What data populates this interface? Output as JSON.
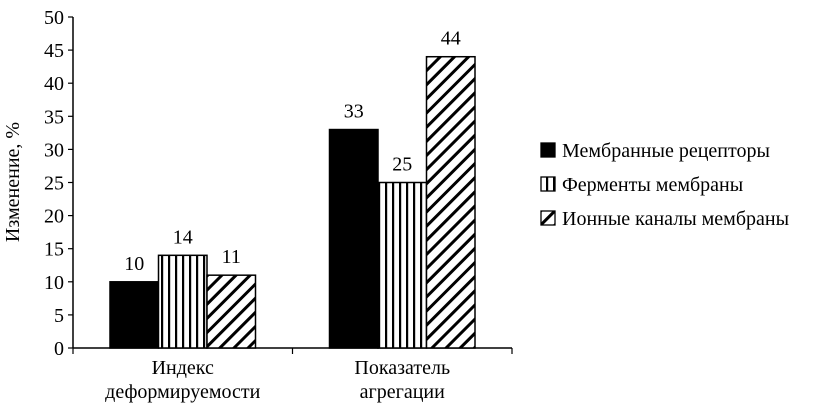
{
  "chart_data": {
    "type": "bar",
    "title": "",
    "xlabel": "",
    "ylabel": "Изменение, %",
    "ylim": [
      0,
      50
    ],
    "yticks": [
      0,
      5,
      10,
      15,
      20,
      25,
      30,
      35,
      40,
      45,
      50
    ],
    "categories": [
      [
        "Индекс",
        "деформируемости"
      ],
      [
        "Показатель",
        "агрегации"
      ]
    ],
    "series": [
      {
        "name": "Мембранные рецепторы",
        "pattern": "solid",
        "values": [
          10,
          33
        ]
      },
      {
        "name": "Ферменты мембраны",
        "pattern": "vertical-stripes",
        "values": [
          14,
          25
        ]
      },
      {
        "name": "Ионные каналы мембраны",
        "pattern": "diagonal-hatch",
        "values": [
          11,
          44
        ]
      }
    ],
    "legend_position": "right",
    "grid": false,
    "colors": {
      "ink": "#000000",
      "background": "#ffffff"
    }
  }
}
